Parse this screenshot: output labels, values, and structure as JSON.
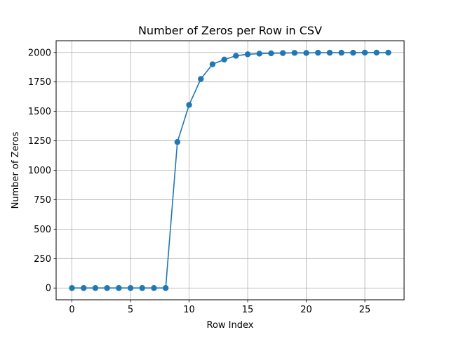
{
  "chart_data": {
    "type": "line",
    "title": "Number of Zeros per Row in CSV",
    "xlabel": "Row Index",
    "ylabel": "Number of Zeros",
    "x": [
      0,
      1,
      2,
      3,
      4,
      5,
      6,
      7,
      8,
      9,
      10,
      11,
      12,
      13,
      14,
      15,
      16,
      17,
      18,
      19,
      20,
      21,
      22,
      23,
      24,
      25,
      26,
      27
    ],
    "series": [
      {
        "values": [
          0,
          0,
          0,
          0,
          0,
          0,
          0,
          0,
          0,
          1240,
          1555,
          1775,
          1900,
          1940,
          1972,
          1985,
          1990,
          1993,
          1995,
          1997,
          1996,
          1998,
          1998,
          1998,
          1998,
          1999,
          1999,
          1999
        ],
        "color": "#1f77b4",
        "marker": "circle"
      }
    ],
    "xlim": [
      -1.35,
      28.35
    ],
    "ylim": [
      -100,
      2100
    ],
    "xticks": [
      0,
      5,
      10,
      15,
      20,
      25
    ],
    "xtick_labels": [
      "0",
      "5",
      "10",
      "15",
      "20",
      "25"
    ],
    "yticks": [
      0,
      250,
      500,
      750,
      1000,
      1250,
      1500,
      1750,
      2000
    ],
    "ytick_labels": [
      "0",
      "250",
      "500",
      "750",
      "1000",
      "1250",
      "1500",
      "1750",
      "2000"
    ],
    "grid": true,
    "grid_color": "#b0b0b0"
  }
}
